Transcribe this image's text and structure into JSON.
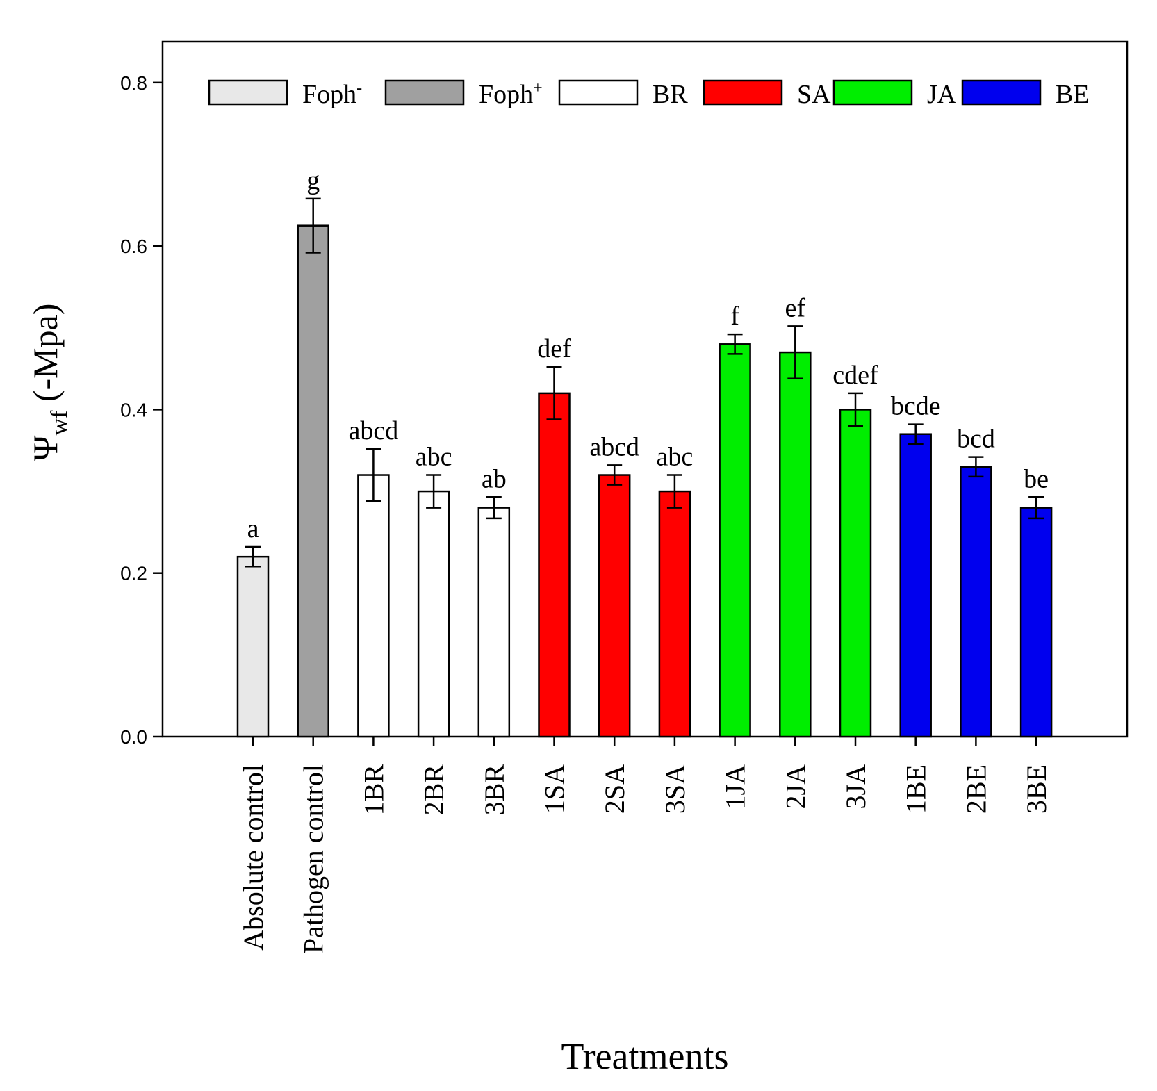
{
  "chart_data": {
    "type": "bar",
    "title": "",
    "xlabel": "Treatments",
    "ylabel": {
      "symbol": "Ψ",
      "subscript": "wf",
      "rest": " (-Mpa)"
    },
    "ylim": [
      0,
      0.85
    ],
    "yticks": [
      "0.0",
      "0.2",
      "0.4",
      "0.6",
      "0.8"
    ],
    "ytick_values": [
      0,
      0.2,
      0.4,
      0.6,
      0.8
    ],
    "categories": [
      "Absolute control",
      "Pathogen control",
      "1BR",
      "2BR",
      "3BR",
      "1SA",
      "2SA",
      "3SA",
      "1JA",
      "2JA",
      "3JA",
      "1BE",
      "2BE",
      "3BE"
    ],
    "values": [
      0.22,
      0.625,
      0.32,
      0.3,
      0.28,
      0.42,
      0.32,
      0.3,
      0.48,
      0.47,
      0.4,
      0.37,
      0.33,
      0.28
    ],
    "errors": [
      0.012,
      0.033,
      0.032,
      0.02,
      0.013,
      0.032,
      0.012,
      0.02,
      0.012,
      0.032,
      0.02,
      0.012,
      0.012,
      0.013
    ],
    "letters": [
      "a",
      "g",
      "abcd",
      "abc",
      "ab",
      "def",
      "abcd",
      "abc",
      "f",
      "ef",
      "cdef",
      "bcde",
      "bcd",
      "be"
    ],
    "groups": [
      "Foph-",
      "Foph+",
      "BR",
      "BR",
      "BR",
      "SA",
      "SA",
      "SA",
      "JA",
      "JA",
      "JA",
      "BE",
      "BE",
      "BE"
    ],
    "legend": [
      {
        "key": "Foph-",
        "base": "Foph",
        "sup": "-",
        "color": "#e8e8e8"
      },
      {
        "key": "Foph+",
        "base": "Foph",
        "sup": "+",
        "color": "#a0a0a0"
      },
      {
        "key": "BR",
        "base": "BR",
        "sup": "",
        "color": "#ffffff"
      },
      {
        "key": "SA",
        "base": "SA",
        "sup": "",
        "color": "#ff0000"
      },
      {
        "key": "JA",
        "base": "JA",
        "sup": "",
        "color": "#00ee00"
      },
      {
        "key": "BE",
        "base": "BE",
        "sup": "",
        "color": "#0000ee"
      }
    ],
    "legend_position": "top",
    "grid": false
  }
}
